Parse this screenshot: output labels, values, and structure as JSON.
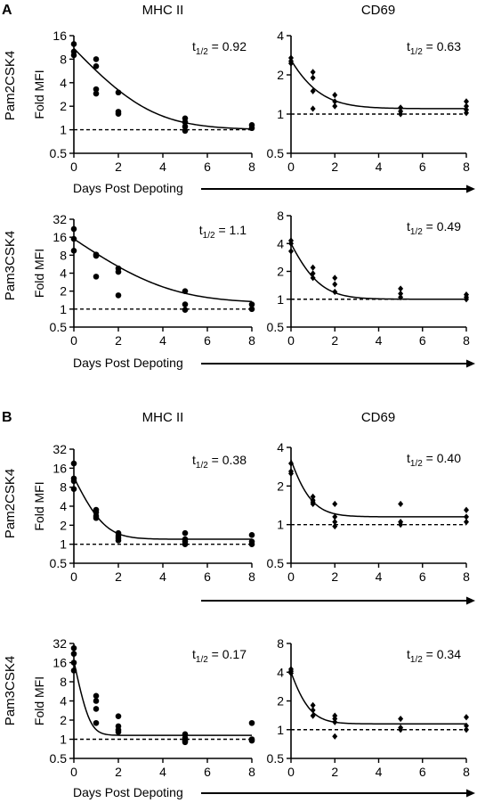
{
  "figure": {
    "panels": [
      {
        "letter": "A",
        "column_titles": [
          "MHC II",
          "CD69"
        ]
      },
      {
        "letter": "B",
        "column_titles": [
          "MHC II",
          "CD69"
        ]
      }
    ],
    "row_labels": [
      "Pam2CSK4",
      "Pam3CSK4",
      "Pam2CSK4",
      "Pam3CSK4"
    ],
    "ylabel": "Fold MFI",
    "xlabel": "Days Post Depoting"
  },
  "chart_data": [
    {
      "type": "scatter",
      "panel": "A",
      "row": "Pam2CSK4",
      "title": "MHC II",
      "marker": "circle",
      "annotation": {
        "base": "t",
        "sub": "1/2",
        "value": " = 0.92"
      },
      "ylabel": "Fold MFI",
      "xlabel": "Days Post Depoting",
      "yscale": "log2",
      "xlim": [
        0,
        8
      ],
      "ylim": [
        0.5,
        16
      ],
      "xticks": [
        "0",
        "2",
        "4",
        "6",
        "8"
      ],
      "yticks": [
        "0.5",
        "1",
        "2",
        "4",
        "8",
        "16"
      ],
      "reference_line": 1,
      "points": [
        [
          0,
          12.5
        ],
        [
          0,
          10
        ],
        [
          0,
          9
        ],
        [
          1,
          8
        ],
        [
          1,
          6.5
        ],
        [
          1,
          3.3
        ],
        [
          1,
          2.9
        ],
        [
          2,
          3
        ],
        [
          2,
          1.7
        ],
        [
          2,
          1.6
        ],
        [
          5,
          1.4
        ],
        [
          5,
          1.25
        ],
        [
          5,
          1.1
        ],
        [
          5,
          0.97
        ],
        [
          8,
          1.15
        ],
        [
          8,
          1.05
        ]
      ],
      "curve": {
        "plateau": 1.0,
        "y0": 11.0,
        "half_life": 0.92
      }
    },
    {
      "type": "scatter",
      "panel": "A",
      "row": "Pam2CSK4",
      "title": "CD69",
      "marker": "diamond",
      "annotation": {
        "base": "t",
        "sub": "1/2",
        "value": " = 0.63"
      },
      "ylabel": "",
      "xlabel": "",
      "yscale": "log2",
      "xlim": [
        0,
        8
      ],
      "ylim": [
        0.5,
        4
      ],
      "xticks": [
        "0",
        "2",
        "4",
        "6",
        "8"
      ],
      "yticks": [
        "0.5",
        "1",
        "2",
        "4"
      ],
      "reference_line": 1,
      "points": [
        [
          0,
          2.7
        ],
        [
          0,
          2.55
        ],
        [
          0,
          2.45
        ],
        [
          1,
          2.1
        ],
        [
          1,
          1.9
        ],
        [
          1,
          1.5
        ],
        [
          1,
          1.1
        ],
        [
          2,
          1.4
        ],
        [
          2,
          1.25
        ],
        [
          2,
          1.15
        ],
        [
          5,
          1.12
        ],
        [
          5,
          1.05
        ],
        [
          5,
          1.0
        ],
        [
          8,
          1.25
        ],
        [
          8,
          1.15
        ],
        [
          8,
          1.08
        ],
        [
          8,
          1.02
        ]
      ],
      "curve": {
        "plateau": 1.1,
        "y0": 2.6,
        "half_life": 0.63
      }
    },
    {
      "type": "scatter",
      "panel": "A",
      "row": "Pam3CSK4",
      "title": "MHC II",
      "marker": "circle",
      "annotation": {
        "base": "t",
        "sub": "1/2",
        "value": " = 1.1"
      },
      "ylabel": "Fold MFI",
      "xlabel": "Days Post Depoting",
      "yscale": "log2",
      "xlim": [
        0,
        8
      ],
      "ylim": [
        0.5,
        32
      ],
      "xticks": [
        "0",
        "2",
        "4",
        "6",
        "8"
      ],
      "yticks": [
        "0.5",
        "1",
        "2",
        "4",
        "8",
        "16",
        "32"
      ],
      "reference_line": 1,
      "points": [
        [
          0,
          22
        ],
        [
          0,
          15
        ],
        [
          0,
          9.5
        ],
        [
          1,
          8.2
        ],
        [
          1,
          7.8
        ],
        [
          1,
          3.5
        ],
        [
          2,
          4.8
        ],
        [
          2,
          4.2
        ],
        [
          2,
          1.7
        ],
        [
          5,
          2.0
        ],
        [
          5,
          1.2
        ],
        [
          5,
          0.97
        ],
        [
          8,
          1.2
        ],
        [
          8,
          1.0
        ]
      ],
      "curve": {
        "plateau": 1.25,
        "y0": 15.0,
        "half_life": 1.1
      }
    },
    {
      "type": "scatter",
      "panel": "A",
      "row": "Pam3CSK4",
      "title": "CD69",
      "marker": "diamond",
      "annotation": {
        "base": "t",
        "sub": "1/2",
        "value": " = 0.49"
      },
      "ylabel": "",
      "xlabel": "",
      "yscale": "log2",
      "xlim": [
        0,
        8
      ],
      "ylim": [
        0.5,
        8
      ],
      "xticks": [
        "0",
        "2",
        "4",
        "6",
        "8"
      ],
      "yticks": [
        "0.5",
        "1",
        "2",
        "4",
        "8"
      ],
      "reference_line": 1,
      "points": [
        [
          0,
          4.3
        ],
        [
          0,
          4.0
        ],
        [
          0,
          3.3
        ],
        [
          1,
          2.2
        ],
        [
          1,
          1.9
        ],
        [
          1,
          1.7
        ],
        [
          2,
          1.7
        ],
        [
          2,
          1.45
        ],
        [
          2,
          1.2
        ],
        [
          5,
          1.3
        ],
        [
          5,
          1.15
        ],
        [
          5,
          1.05
        ],
        [
          8,
          1.12
        ],
        [
          8,
          1.05
        ],
        [
          8,
          1.0
        ]
      ],
      "curve": {
        "plateau": 1.0,
        "y0": 4.0,
        "half_life": 0.49
      }
    },
    {
      "type": "scatter",
      "panel": "B",
      "row": "Pam2CSK4",
      "title": "MHC II",
      "marker": "circle",
      "annotation": {
        "base": "t",
        "sub": "1/2",
        "value": " = 0.38"
      },
      "ylabel": "Fold MFI",
      "xlabel": "",
      "yscale": "log2",
      "xlim": [
        0,
        8
      ],
      "ylim": [
        0.5,
        32
      ],
      "xticks": [
        "0",
        "2",
        "4",
        "6",
        "8"
      ],
      "yticks": [
        "0.5",
        "1",
        "2",
        "4",
        "8",
        "16",
        "32"
      ],
      "reference_line": 1,
      "points": [
        [
          0,
          19
        ],
        [
          0,
          11
        ],
        [
          0,
          10
        ],
        [
          0,
          7.5
        ],
        [
          1,
          3.5
        ],
        [
          1,
          3.2
        ],
        [
          1,
          2.8
        ],
        [
          1,
          2.6
        ],
        [
          2,
          1.5
        ],
        [
          2,
          1.35
        ],
        [
          2,
          1.25
        ],
        [
          2,
          1.15
        ],
        [
          5,
          1.5
        ],
        [
          5,
          1.2
        ],
        [
          5,
          1.1
        ],
        [
          5,
          1.0
        ],
        [
          8,
          1.4
        ],
        [
          8,
          1.1
        ],
        [
          8,
          1.0
        ]
      ],
      "curve": {
        "plateau": 1.2,
        "y0": 11.5,
        "half_life": 0.38
      }
    },
    {
      "type": "scatter",
      "panel": "B",
      "row": "Pam2CSK4",
      "title": "CD69",
      "marker": "diamond",
      "annotation": {
        "base": "t",
        "sub": "1/2",
        "value": " = 0.40"
      },
      "ylabel": "",
      "xlabel": "Days Post Depoting",
      "yscale": "log2",
      "xlim": [
        0,
        8
      ],
      "ylim": [
        0.5,
        4
      ],
      "xticks": [
        "0",
        "2",
        "4",
        "6",
        "8"
      ],
      "yticks": [
        "0.5",
        "1",
        "2",
        "4"
      ],
      "reference_line": 1,
      "points": [
        [
          0,
          3.0
        ],
        [
          0,
          2.6
        ],
        [
          0,
          2.5
        ],
        [
          1,
          1.65
        ],
        [
          1,
          1.55
        ],
        [
          1,
          1.5
        ],
        [
          1,
          1.45
        ],
        [
          2,
          1.45
        ],
        [
          2,
          1.15
        ],
        [
          2,
          1.05
        ],
        [
          2,
          0.97
        ],
        [
          5,
          1.45
        ],
        [
          5,
          1.05
        ],
        [
          5,
          1.0
        ],
        [
          8,
          1.3
        ],
        [
          8,
          1.15
        ],
        [
          8,
          1.05
        ]
      ],
      "curve": {
        "plateau": 1.15,
        "y0": 3.2,
        "half_life": 0.4
      }
    },
    {
      "type": "scatter",
      "panel": "B",
      "row": "Pam3CSK4",
      "title": "MHC II",
      "marker": "circle",
      "annotation": {
        "base": "t",
        "sub": "1/2",
        "value": " = 0.17"
      },
      "ylabel": "Fold MFI",
      "xlabel": "",
      "yscale": "log2",
      "xlim": [
        0,
        8
      ],
      "ylim": [
        0.5,
        32
      ],
      "xticks": [
        "0",
        "2",
        "4",
        "6",
        "8"
      ],
      "yticks": [
        "0.5",
        "1",
        "2",
        "4",
        "8",
        "16",
        "32"
      ],
      "reference_line": 1,
      "points": [
        [
          0,
          27
        ],
        [
          0,
          22
        ],
        [
          0,
          16
        ],
        [
          0,
          12
        ],
        [
          1,
          4.8
        ],
        [
          1,
          4.0
        ],
        [
          1,
          3.0
        ],
        [
          1,
          1.8
        ],
        [
          2,
          2.3
        ],
        [
          2,
          1.6
        ],
        [
          2,
          1.4
        ],
        [
          2,
          1.3
        ],
        [
          5,
          1.2
        ],
        [
          5,
          1.05
        ],
        [
          5,
          0.95
        ],
        [
          5,
          0.9
        ],
        [
          8,
          1.8
        ],
        [
          8,
          1.0
        ],
        [
          8,
          0.95
        ]
      ],
      "curve": {
        "plateau": 1.15,
        "y0": 17.0,
        "half_life": 0.17
      }
    },
    {
      "type": "scatter",
      "panel": "B",
      "row": "Pam3CSK4",
      "title": "CD69",
      "marker": "diamond",
      "annotation": {
        "base": "t",
        "sub": "1/2",
        "value": " = 0.34"
      },
      "ylabel": "",
      "xlabel": "Days Post Depoting",
      "yscale": "log2",
      "xlim": [
        0,
        8
      ],
      "ylim": [
        0.5,
        8
      ],
      "xticks": [
        "0",
        "2",
        "4",
        "6",
        "8"
      ],
      "yticks": [
        "0.5",
        "1",
        "2",
        "4",
        "8"
      ],
      "reference_line": 1,
      "points": [
        [
          0,
          4.3
        ],
        [
          0,
          4.1
        ],
        [
          0,
          3.9
        ],
        [
          1,
          1.8
        ],
        [
          1,
          1.6
        ],
        [
          1,
          1.4
        ],
        [
          2,
          1.4
        ],
        [
          2,
          1.3
        ],
        [
          2,
          1.2
        ],
        [
          2,
          0.85
        ],
        [
          5,
          1.3
        ],
        [
          5,
          1.05
        ],
        [
          5,
          1.0
        ],
        [
          8,
          1.35
        ],
        [
          8,
          1.1
        ],
        [
          8,
          1.0
        ]
      ],
      "curve": {
        "plateau": 1.15,
        "y0": 4.0,
        "half_life": 0.34
      }
    }
  ]
}
